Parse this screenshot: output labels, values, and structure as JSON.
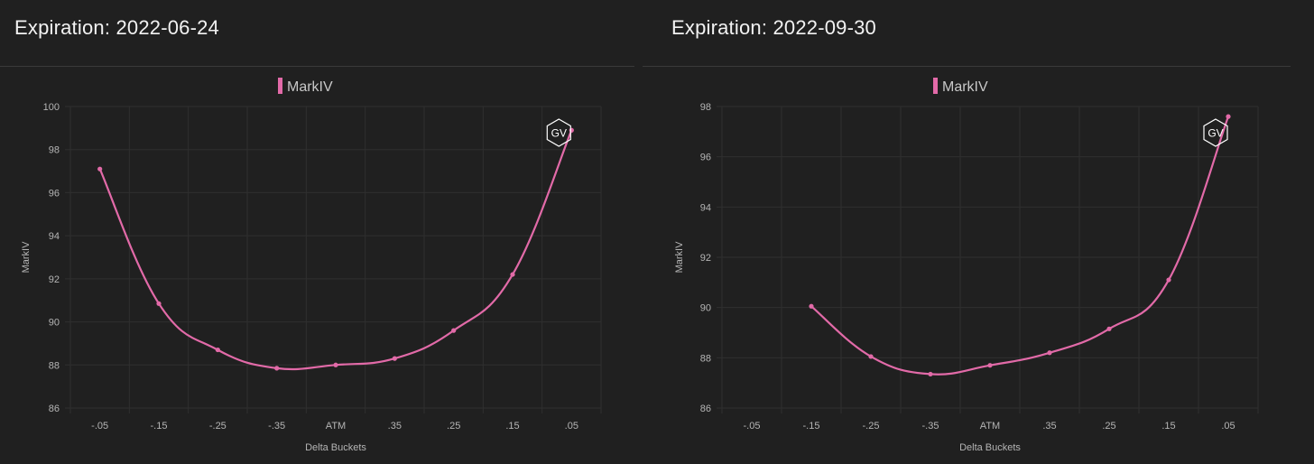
{
  "colors": {
    "line": "#e26aa8",
    "grid": "#2f2f2f",
    "background": "#202020",
    "divider": "#3a3a3a"
  },
  "watermark": "GV",
  "chart_data": [
    {
      "type": "line",
      "title": "Expiration: 2022-06-24",
      "xlabel": "Delta Buckets",
      "ylabel": "MarkIV",
      "legend": {
        "entries": [
          "MarkIV"
        ],
        "position": "top-center"
      },
      "categories": [
        "-.05",
        "-.15",
        "-.25",
        "-.35",
        "ATM",
        ".35",
        ".25",
        ".15",
        ".05"
      ],
      "series": [
        {
          "name": "MarkIV",
          "values": [
            97.1,
            90.85,
            88.7,
            87.85,
            88.0,
            88.3,
            89.6,
            92.2,
            98.9
          ]
        }
      ],
      "ylim": [
        86,
        100
      ],
      "yticks": [
        86,
        88,
        90,
        92,
        94,
        96,
        98,
        100
      ],
      "grid": true
    },
    {
      "type": "line",
      "title": "Expiration: 2022-09-30",
      "xlabel": "Delta Buckets",
      "ylabel": "MarkIV",
      "legend": {
        "entries": [
          "MarkIV"
        ],
        "position": "top-center"
      },
      "categories": [
        "-.05",
        "-.15",
        "-.25",
        "-.35",
        "ATM",
        ".35",
        ".25",
        ".15",
        ".05"
      ],
      "series": [
        {
          "name": "MarkIV",
          "values": [
            null,
            90.05,
            88.05,
            87.35,
            87.7,
            88.2,
            89.15,
            91.1,
            97.6
          ]
        }
      ],
      "ylim": [
        86,
        98
      ],
      "yticks": [
        86,
        88,
        90,
        92,
        94,
        96,
        98
      ],
      "grid": true
    }
  ]
}
